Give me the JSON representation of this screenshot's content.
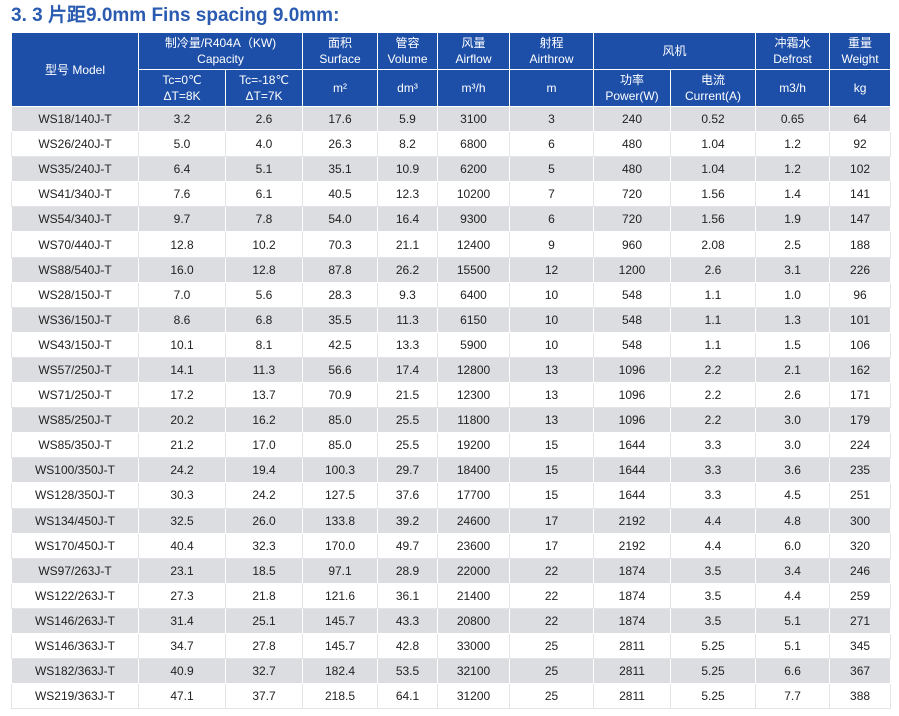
{
  "title": "3. 3 片距9.0mm Fins spacing 9.0mm:",
  "header": {
    "model": "型号 Model",
    "capacity_l1": "制冷量/R404A（KW)",
    "capacity_l2": "Capacity",
    "tc0_l1": "Tc=0℃",
    "tc0_l2": "ΔT=8K",
    "tc18_l1": "Tc=-18℃",
    "tc18_l2": "ΔT=7K",
    "surface_l1": "面积",
    "surface_l2": "Surface",
    "surface_unit": "m²",
    "volume_l1": "管容",
    "volume_l2": "Volume",
    "volume_unit": "dm³",
    "airflow_l1": "风量",
    "airflow_l2": "Airflow",
    "airflow_unit": "m³/h",
    "airthrow_l1": "射程",
    "airthrow_l2": "Airthrow",
    "airthrow_unit": "m",
    "fan": "风机",
    "power_l1": "功率",
    "power_l2": "Power(W)",
    "current_l1": "电流",
    "current_l2": "Current(A)",
    "defrost_l1": "冲霜水",
    "defrost_l2": "Defrost",
    "defrost_unit": "m3/h",
    "weight_l1": "重量",
    "weight_l2": "Weight",
    "weight_unit": "kg"
  },
  "rows": [
    [
      "WS18/140J-T",
      "3.2",
      "2.6",
      "17.6",
      "5.9",
      "3100",
      "3",
      "240",
      "0.52",
      "0.65",
      "64"
    ],
    [
      "WS26/240J-T",
      "5.0",
      "4.0",
      "26.3",
      "8.2",
      "6800",
      "6",
      "480",
      "1.04",
      "1.2",
      "92"
    ],
    [
      "WS35/240J-T",
      "6.4",
      "5.1",
      "35.1",
      "10.9",
      "6200",
      "5",
      "480",
      "1.04",
      "1.2",
      "102"
    ],
    [
      "WS41/340J-T",
      "7.6",
      "6.1",
      "40.5",
      "12.3",
      "10200",
      "7",
      "720",
      "1.56",
      "1.4",
      "141"
    ],
    [
      "WS54/340J-T",
      "9.7",
      "7.8",
      "54.0",
      "16.4",
      "9300",
      "6",
      "720",
      "1.56",
      "1.9",
      "147"
    ],
    [
      "WS70/440J-T",
      "12.8",
      "10.2",
      "70.3",
      "21.1",
      "12400",
      "9",
      "960",
      "2.08",
      "2.5",
      "188"
    ],
    [
      "WS88/540J-T",
      "16.0",
      "12.8",
      "87.8",
      "26.2",
      "15500",
      "12",
      "1200",
      "2.6",
      "3.1",
      "226"
    ],
    [
      "WS28/150J-T",
      "7.0",
      "5.6",
      "28.3",
      "9.3",
      "6400",
      "10",
      "548",
      "1.1",
      "1.0",
      "96"
    ],
    [
      "WS36/150J-T",
      "8.6",
      "6.8",
      "35.5",
      "11.3",
      "6150",
      "10",
      "548",
      "1.1",
      "1.3",
      "101"
    ],
    [
      "WS43/150J-T",
      "10.1",
      "8.1",
      "42.5",
      "13.3",
      "5900",
      "10",
      "548",
      "1.1",
      "1.5",
      "106"
    ],
    [
      "WS57/250J-T",
      "14.1",
      "11.3",
      "56.6",
      "17.4",
      "12800",
      "13",
      "1096",
      "2.2",
      "2.1",
      "162"
    ],
    [
      "WS71/250J-T",
      "17.2",
      "13.7",
      "70.9",
      "21.5",
      "12300",
      "13",
      "1096",
      "2.2",
      "2.6",
      "171"
    ],
    [
      "WS85/250J-T",
      "20.2",
      "16.2",
      "85.0",
      "25.5",
      "11800",
      "13",
      "1096",
      "2.2",
      "3.0",
      "179"
    ],
    [
      "WS85/350J-T",
      "21.2",
      "17.0",
      "85.0",
      "25.5",
      "19200",
      "15",
      "1644",
      "3.3",
      "3.0",
      "224"
    ],
    [
      "WS100/350J-T",
      "24.2",
      "19.4",
      "100.3",
      "29.7",
      "18400",
      "15",
      "1644",
      "3.3",
      "3.6",
      "235"
    ],
    [
      "WS128/350J-T",
      "30.3",
      "24.2",
      "127.5",
      "37.6",
      "17700",
      "15",
      "1644",
      "3.3",
      "4.5",
      "251"
    ],
    [
      "WS134/450J-T",
      "32.5",
      "26.0",
      "133.8",
      "39.2",
      "24600",
      "17",
      "2192",
      "4.4",
      "4.8",
      "300"
    ],
    [
      "WS170/450J-T",
      "40.4",
      "32.3",
      "170.0",
      "49.7",
      "23600",
      "17",
      "2192",
      "4.4",
      "6.0",
      "320"
    ],
    [
      "WS97/263J-T",
      "23.1",
      "18.5",
      "97.1",
      "28.9",
      "22000",
      "22",
      "1874",
      "3.5",
      "3.4",
      "246"
    ],
    [
      "WS122/263J-T",
      "27.3",
      "21.8",
      "121.6",
      "36.1",
      "21400",
      "22",
      "1874",
      "3.5",
      "4.4",
      "259"
    ],
    [
      "WS146/263J-T",
      "31.4",
      "25.1",
      "145.7",
      "43.3",
      "20800",
      "22",
      "1874",
      "3.5",
      "5.1",
      "271"
    ],
    [
      "WS146/363J-T",
      "34.7",
      "27.8",
      "145.7",
      "42.8",
      "33000",
      "25",
      "2811",
      "5.25",
      "5.1",
      "345"
    ],
    [
      "WS182/363J-T",
      "40.9",
      "32.7",
      "182.4",
      "53.5",
      "32100",
      "25",
      "2811",
      "5.25",
      "6.6",
      "367"
    ],
    [
      "WS219/363J-T",
      "47.1",
      "37.7",
      "218.5",
      "64.1",
      "31200",
      "25",
      "2811",
      "5.25",
      "7.7",
      "388"
    ]
  ]
}
